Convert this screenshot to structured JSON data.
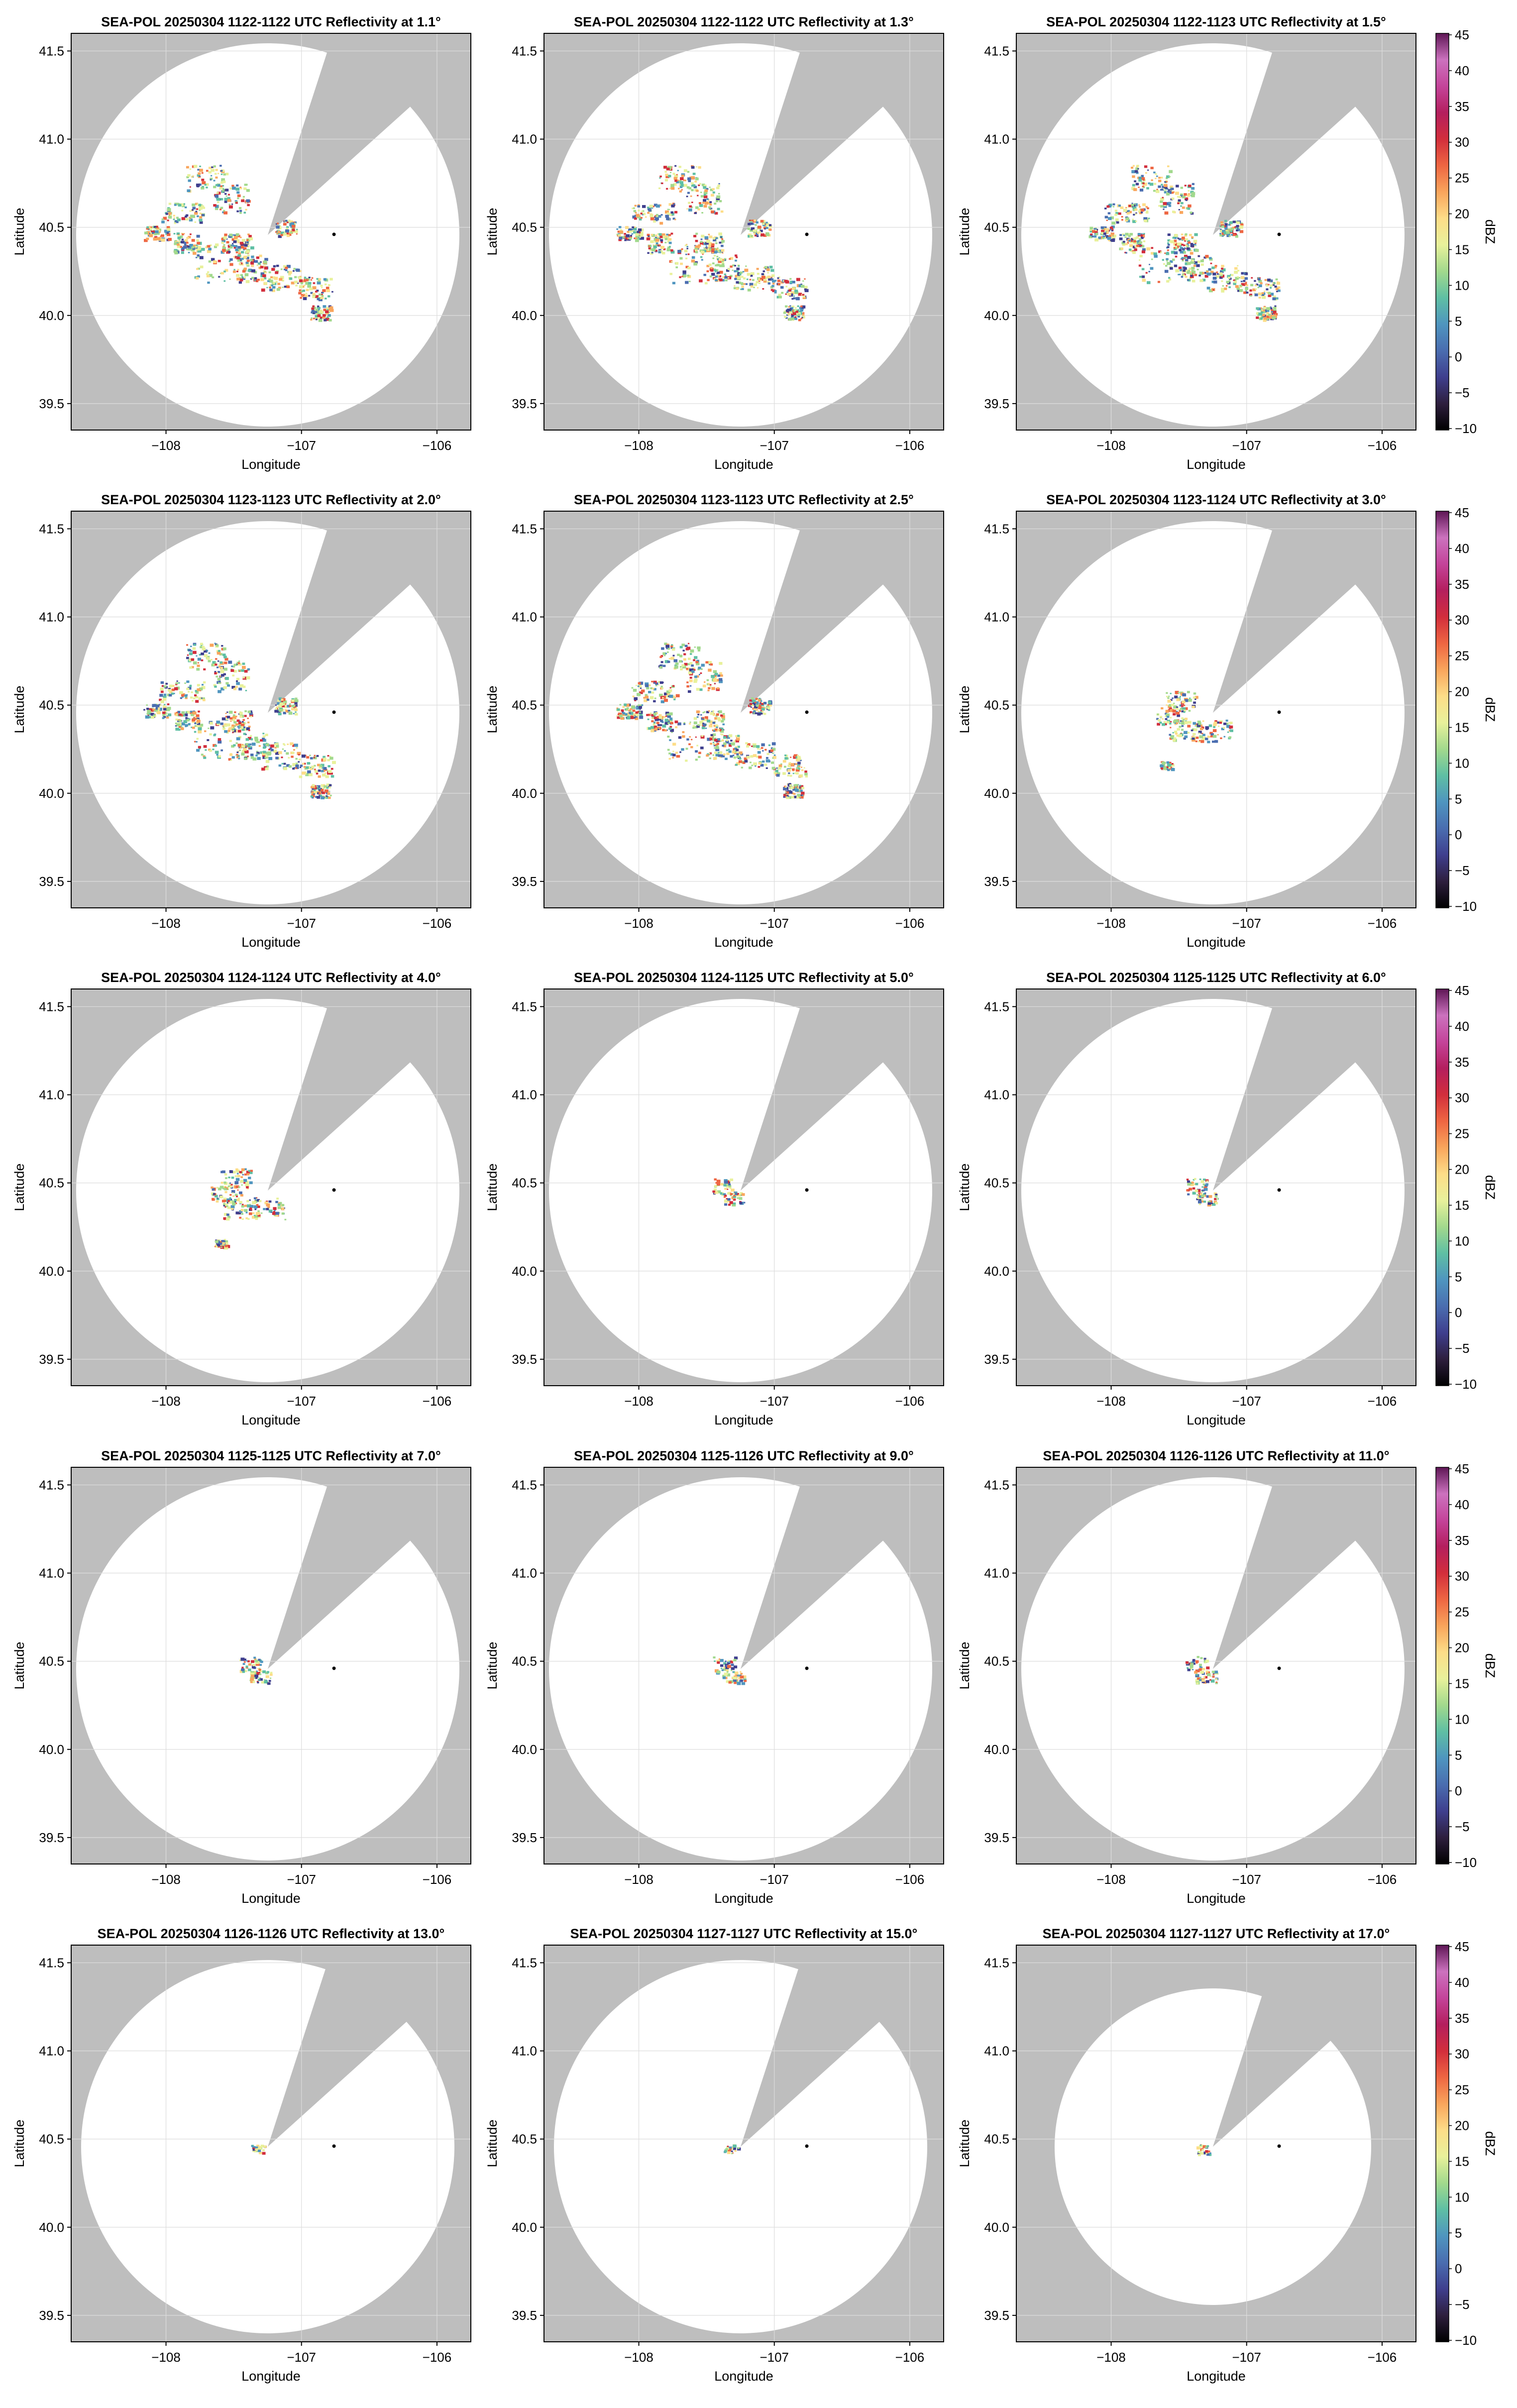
{
  "figure": {
    "colors": {
      "background": "#ffffff",
      "outside_coverage": "#bebebe",
      "coverage": "#ffffff",
      "grid": "#dddddd",
      "axes": "#000000",
      "radar_marker": "#000000"
    },
    "colorbar": {
      "label": "dBZ",
      "ticks": [
        "45",
        "40",
        "35",
        "30",
        "25",
        "20",
        "15",
        "10",
        "5",
        "0",
        "−5",
        "−10"
      ],
      "range": [
        -10,
        45
      ],
      "stops": [
        "#000000",
        "#2e1f3e",
        "#3f3f8e",
        "#4a6db0",
        "#4f95bf",
        "#5fbfa4",
        "#a2d98d",
        "#e8f19b",
        "#fddd88",
        "#f9a55c",
        "#ee6642",
        "#d22e3c",
        "#b41f5e",
        "#c4449a",
        "#cc72be",
        "#5e1655"
      ]
    },
    "axes_labels": {
      "x": "Longitude",
      "y": "Latitude",
      "x_ticks": [
        "−108",
        "−107",
        "−106"
      ],
      "y_ticks": [
        "41.5",
        "41.0",
        "40.5",
        "40.0",
        "39.5"
      ]
    },
    "panels": [
      {
        "title": "SEA-POL 20250304 1122-1122 UTC Reflectivity at 1.1°"
      },
      {
        "title": "SEA-POL 20250304 1122-1122 UTC Reflectivity at 1.3°"
      },
      {
        "title": "SEA-POL 20250304 1122-1123 UTC Reflectivity at 1.5°"
      },
      {
        "title": "SEA-POL 20250304 1123-1123 UTC Reflectivity at 2.0°"
      },
      {
        "title": "SEA-POL 20250304 1123-1123 UTC Reflectivity at 2.5°"
      },
      {
        "title": "SEA-POL 20250304 1123-1124 UTC Reflectivity at 3.0°"
      },
      {
        "title": "SEA-POL 20250304 1124-1124 UTC Reflectivity at 4.0°"
      },
      {
        "title": "SEA-POL 20250304 1124-1125 UTC Reflectivity at 5.0°"
      },
      {
        "title": "SEA-POL 20250304 1125-1125 UTC Reflectivity at 6.0°"
      },
      {
        "title": "SEA-POL 20250304 1125-1125 UTC Reflectivity at 7.0°"
      },
      {
        "title": "SEA-POL 20250304 1125-1126 UTC Reflectivity at 9.0°"
      },
      {
        "title": "SEA-POL 20250304 1126-1126 UTC Reflectivity at 11.0°"
      },
      {
        "title": "SEA-POL 20250304 1126-1126 UTC Reflectivity at 13.0°"
      },
      {
        "title": "SEA-POL 20250304 1127-1127 UTC Reflectivity at 15.0°"
      },
      {
        "title": "SEA-POL 20250304 1127-1127 UTC Reflectivity at 17.0°"
      }
    ]
  },
  "chart_data": {
    "type": "heatmap",
    "xlabel": "Longitude",
    "ylabel": "Latitude",
    "xlim": [
      -108.7,
      -105.75
    ],
    "ylim": [
      39.35,
      41.6
    ],
    "xticks": [
      -108,
      -107,
      -106
    ],
    "yticks": [
      39.5,
      40.0,
      40.5,
      41.0,
      41.5
    ],
    "grid": true,
    "colorbar_label": "dBZ",
    "colorbar_range": [
      -10,
      45
    ],
    "radar_location": {
      "lon": -106.76,
      "lat": 40.46
    },
    "layout": "5 rows x 3 columns, colorbar to the right of each row",
    "panels": [
      {
        "title": "SEA-POL 20250304 1122-1122 UTC Reflectivity at 1.1°",
        "elevation_deg": 1.1,
        "echo_extent": "large"
      },
      {
        "title": "SEA-POL 20250304 1122-1122 UTC Reflectivity at 1.3°",
        "elevation_deg": 1.3,
        "echo_extent": "large"
      },
      {
        "title": "SEA-POL 20250304 1122-1123 UTC Reflectivity at 1.5°",
        "elevation_deg": 1.5,
        "echo_extent": "large"
      },
      {
        "title": "SEA-POL 20250304 1123-1123 UTC Reflectivity at 2.0°",
        "elevation_deg": 2.0,
        "echo_extent": "large"
      },
      {
        "title": "SEA-POL 20250304 1123-1123 UTC Reflectivity at 2.5°",
        "elevation_deg": 2.5,
        "echo_extent": "large"
      },
      {
        "title": "SEA-POL 20250304 1123-1124 UTC Reflectivity at 3.0°",
        "elevation_deg": 3.0,
        "echo_extent": "medium"
      },
      {
        "title": "SEA-POL 20250304 1124-1124 UTC Reflectivity at 4.0°",
        "elevation_deg": 4.0,
        "echo_extent": "medium"
      },
      {
        "title": "SEA-POL 20250304 1124-1125 UTC Reflectivity at 5.0°",
        "elevation_deg": 5.0,
        "echo_extent": "small"
      },
      {
        "title": "SEA-POL 20250304 1125-1125 UTC Reflectivity at 6.0°",
        "elevation_deg": 6.0,
        "echo_extent": "small"
      },
      {
        "title": "SEA-POL 20250304 1125-1125 UTC Reflectivity at 7.0°",
        "elevation_deg": 7.0,
        "echo_extent": "small"
      },
      {
        "title": "SEA-POL 20250304 1125-1126 UTC Reflectivity at 9.0°",
        "elevation_deg": 9.0,
        "echo_extent": "small"
      },
      {
        "title": "SEA-POL 20250304 1126-1126 UTC Reflectivity at 11.0°",
        "elevation_deg": 11.0,
        "echo_extent": "small"
      },
      {
        "title": "SEA-POL 20250304 1126-1126 UTC Reflectivity at 13.0°",
        "elevation_deg": 13.0,
        "echo_extent": "tiny"
      },
      {
        "title": "SEA-POL 20250304 1127-1127 UTC Reflectivity at 15.0°",
        "elevation_deg": 15.0,
        "echo_extent": "tiny"
      },
      {
        "title": "SEA-POL 20250304 1127-1127 UTC Reflectivity at 17.0°",
        "elevation_deg": 17.0,
        "echo_extent": "tiny"
      }
    ]
  }
}
